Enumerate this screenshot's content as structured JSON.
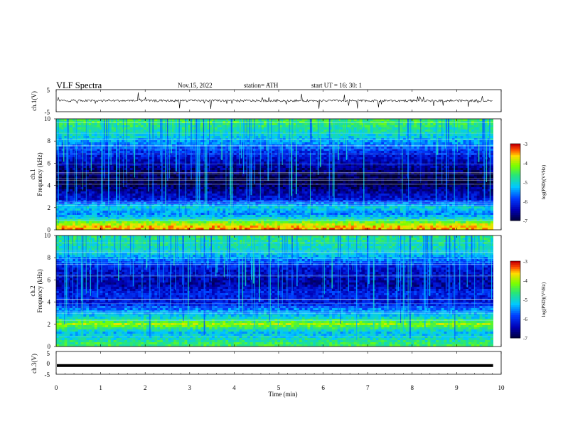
{
  "header": {
    "title": "VLF  Spectra",
    "date": "Nov.15, 2022",
    "station": "station= ATH",
    "start_ut": "start  UT  =    16: 30: 1"
  },
  "chart_data": [
    {
      "type": "line",
      "ylabel": "ch.1(V)",
      "ylim": [
        -5,
        5
      ],
      "y_ticks": [
        "5",
        "-5"
      ],
      "description_values": {
        "baseline_V": 0,
        "typical_noise_V": 0.5,
        "spike_max_V": 3.5
      }
    },
    {
      "type": "heatmap",
      "ylabel": [
        "ch.1",
        "Frequency  (kHz)"
      ],
      "ylim": [
        0,
        10
      ],
      "y_ticks": [
        "0",
        "2",
        "4",
        "6",
        "8",
        "10"
      ],
      "colorbar": {
        "label": "log(PSD)(V²/Hz)",
        "range": [
          -7,
          -3
        ],
        "ticks": [
          "-3",
          "-4",
          "-5",
          "-6",
          "-7"
        ]
      },
      "bands": [
        {
          "f_khz": 0.2,
          "level": -3.5
        },
        {
          "f_khz": 0.6,
          "level": -4.0
        },
        {
          "f_khz": 1.0,
          "level": -5.0
        },
        {
          "f_khz": 1.5,
          "level": -5.5
        },
        {
          "f_khz": 2.0,
          "level": -5.0
        },
        {
          "f_khz": 2.8,
          "level": -6.2
        },
        {
          "f_khz": 3.5,
          "level": -6.5
        },
        {
          "f_khz": 4.3,
          "level": -7.0
        },
        {
          "f_khz": 5.0,
          "level": -6.8
        },
        {
          "f_khz": 5.8,
          "level": -6.5
        },
        {
          "f_khz": 7.0,
          "level": -6.0
        },
        {
          "f_khz": 8.5,
          "level": -5.0
        },
        {
          "f_khz": 9.7,
          "level": -4.5
        }
      ]
    },
    {
      "type": "heatmap",
      "ylabel": [
        "ch.2",
        "Frequency  (kHz)"
      ],
      "ylim": [
        0,
        10
      ],
      "y_ticks": [
        "0",
        "2",
        "4",
        "6",
        "8",
        "10"
      ],
      "colorbar": {
        "label": "log(PSD)(V²/Hz)",
        "range": [
          -7,
          -3
        ],
        "ticks": [
          "-3",
          "-4",
          "-5",
          "-6",
          "-7"
        ]
      },
      "bands": [
        {
          "f_khz": 0.2,
          "level": -4.5
        },
        {
          "f_khz": 0.8,
          "level": -5.0
        },
        {
          "f_khz": 1.3,
          "level": -5.2
        },
        {
          "f_khz": 2.0,
          "level": -4.0
        },
        {
          "f_khz": 2.6,
          "level": -5.0
        },
        {
          "f_khz": 3.3,
          "level": -5.5
        },
        {
          "f_khz": 4.0,
          "level": -6.2
        },
        {
          "f_khz": 4.8,
          "level": -6.0
        },
        {
          "f_khz": 5.6,
          "level": -6.5
        },
        {
          "f_khz": 7.0,
          "level": -6.2
        },
        {
          "f_khz": 8.5,
          "level": -5.0
        },
        {
          "f_khz": 9.7,
          "level": -4.7
        }
      ]
    },
    {
      "type": "line",
      "ylabel": "ch.3(V)",
      "ylim": [
        -5,
        5
      ],
      "y_ticks": [
        "5",
        "0",
        "-5"
      ],
      "constant_value_V": -1.2
    }
  ],
  "xaxis": {
    "label": "Time  (min)",
    "range": [
      0,
      10
    ],
    "ticks": [
      "0",
      "1",
      "2",
      "3",
      "4",
      "5",
      "6",
      "7",
      "8",
      "9",
      "10"
    ],
    "data_end_min": 9.82
  },
  "colors": {
    "background": "#ffffff",
    "axes": "#000000",
    "data_gap": "#ffffff"
  }
}
